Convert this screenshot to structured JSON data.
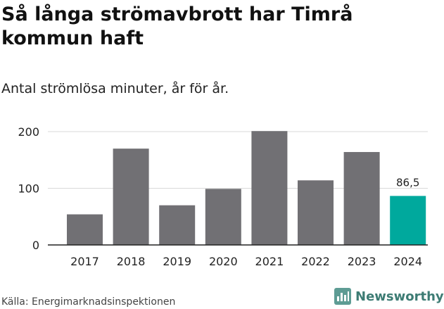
{
  "header": {
    "title": "Så långa strömavbrott har Timrå kommun haft",
    "subtitle": "Antal strömlösa minuter, år för år."
  },
  "footer": {
    "source": "Källa: Energimarknadsinspektionen",
    "brand": "Newsworthy"
  },
  "colors": {
    "bar": "#717074",
    "highlight": "#00a99d",
    "brand": "#3d7c74"
  },
  "icons": {
    "brand_logo": "newsworthy-logo-icon"
  },
  "chart_data": {
    "type": "bar",
    "title": "Så långa strömavbrott har Timrå kommun haft",
    "subtitle": "Antal strömlösa minuter, år för år.",
    "categories": [
      "2017",
      "2018",
      "2019",
      "2020",
      "2021",
      "2022",
      "2023",
      "2024"
    ],
    "values": [
      54,
      170,
      70,
      99,
      201,
      114,
      164,
      86.5
    ],
    "highlight_index": 7,
    "data_labels": [
      {
        "index": 7,
        "text": "86,5"
      }
    ],
    "yticks": [
      0,
      100,
      200
    ],
    "ylim": [
      0,
      200
    ],
    "xlabel": "",
    "ylabel": "",
    "grid": true,
    "legend": "none"
  }
}
